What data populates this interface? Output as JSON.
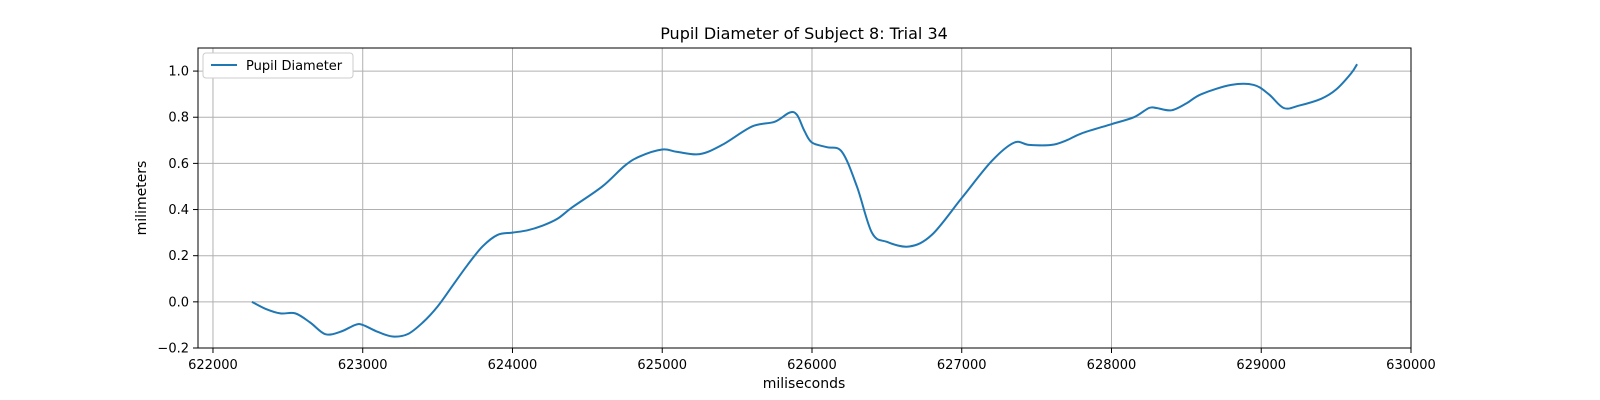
{
  "chart_data": {
    "type": "line",
    "title": "Pupil Diameter of Subject 8: Trial 34",
    "xlabel": "miliseconds",
    "ylabel": "milimeters",
    "xlim": [
      621900,
      630000
    ],
    "ylim": [
      -0.2,
      1.1
    ],
    "xticks": [
      622000,
      623000,
      624000,
      625000,
      626000,
      627000,
      628000,
      629000,
      630000
    ],
    "yticks": [
      -0.2,
      0.0,
      0.2,
      0.4,
      0.6,
      0.8,
      1.0
    ],
    "xtick_labels": [
      "622000",
      "623000",
      "624000",
      "625000",
      "626000",
      "627000",
      "628000",
      "629000",
      "630000"
    ],
    "ytick_labels": [
      "−0.2",
      "0.0",
      "0.2",
      "0.4",
      "0.6",
      "0.8",
      "1.0"
    ],
    "grid": true,
    "legend_position": "top-left",
    "series": [
      {
        "name": "Pupil Diameter",
        "color": "#1f77b4",
        "x": [
          622260,
          622350,
          622450,
          622550,
          622650,
          622750,
          622850,
          622950,
          623000,
          623100,
          623200,
          623300,
          623400,
          623500,
          623600,
          623700,
          623800,
          623900,
          624000,
          624100,
          624200,
          624300,
          624400,
          624600,
          624750,
          624850,
          625000,
          625100,
          625250,
          625400,
          625600,
          625750,
          625850,
          625900,
          625950,
          626000,
          626100,
          626200,
          626300,
          626400,
          626500,
          626650,
          626800,
          627000,
          627200,
          627350,
          627450,
          627600,
          627700,
          627800,
          628000,
          628150,
          628250,
          628300,
          628400,
          628500,
          628600,
          628800,
          628950,
          629050,
          629150,
          629250,
          629400,
          629500,
          629600,
          629640
        ],
        "y": [
          0.0,
          -0.03,
          -0.05,
          -0.05,
          -0.09,
          -0.14,
          -0.13,
          -0.1,
          -0.1,
          -0.13,
          -0.15,
          -0.14,
          -0.09,
          -0.02,
          0.07,
          0.16,
          0.24,
          0.29,
          0.3,
          0.31,
          0.33,
          0.36,
          0.41,
          0.5,
          0.59,
          0.63,
          0.66,
          0.65,
          0.64,
          0.68,
          0.76,
          0.78,
          0.82,
          0.81,
          0.74,
          0.69,
          0.67,
          0.65,
          0.5,
          0.3,
          0.26,
          0.24,
          0.29,
          0.45,
          0.61,
          0.69,
          0.68,
          0.68,
          0.7,
          0.73,
          0.77,
          0.8,
          0.84,
          0.84,
          0.83,
          0.86,
          0.9,
          0.94,
          0.94,
          0.9,
          0.84,
          0.85,
          0.88,
          0.92,
          0.99,
          1.03
        ]
      }
    ]
  }
}
